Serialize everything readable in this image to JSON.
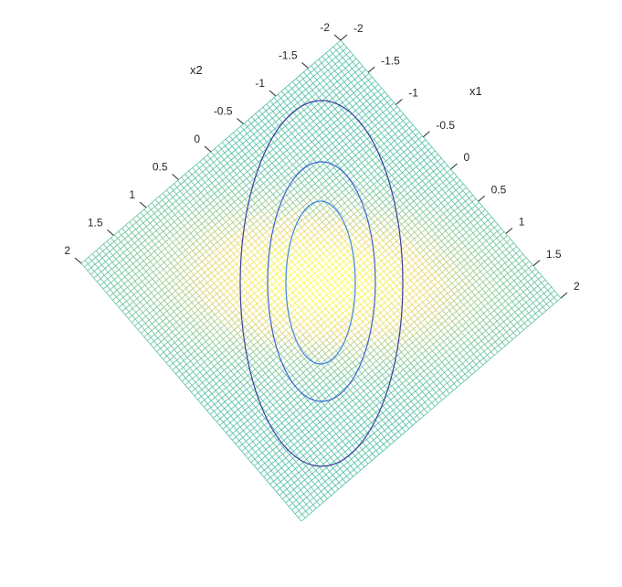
{
  "chart_data": {
    "type": "surface-contour",
    "title": "",
    "x1_label": "x1",
    "x2_label": "x2",
    "x1_range": [
      -2,
      2
    ],
    "x2_range": [
      -2,
      2
    ],
    "x1_ticks": [
      "-2",
      "-1.5",
      "-1",
      "-0.5",
      "0",
      "0.5",
      "1",
      "1.5",
      "2"
    ],
    "x2_ticks": [
      "-2",
      "-1.5",
      "-1",
      "-0.5",
      "0",
      "0.5",
      "1",
      "1.5",
      "2"
    ],
    "surface": {
      "grid_points": 71,
      "peak_at": [
        0,
        0
      ],
      "colormap": [
        "#4fbfa4",
        "#e8d56a",
        "#ffff40"
      ]
    },
    "contours": [
      {
        "color": "#3b3f9e"
      },
      {
        "color": "#3d63d6"
      },
      {
        "color": "#3f86e8"
      }
    ]
  }
}
